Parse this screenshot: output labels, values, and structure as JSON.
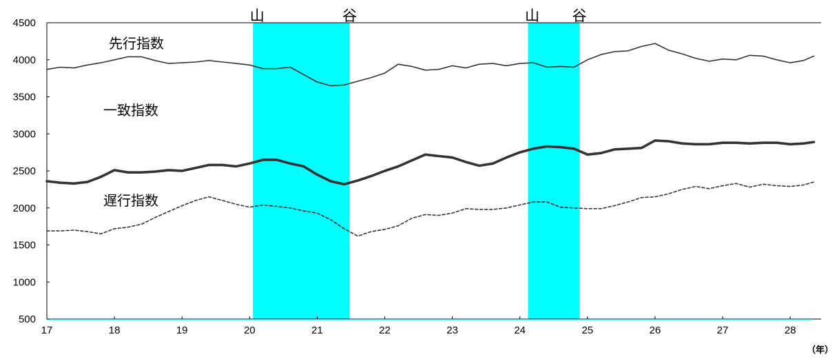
{
  "chart_data": {
    "type": "line",
    "x_unit_label": "（年）",
    "xlim": [
      17,
      28.35
    ],
    "ylim": [
      500,
      4500
    ],
    "y_ticks": [
      500,
      1000,
      1500,
      2000,
      2500,
      3000,
      3500,
      4000,
      4500
    ],
    "x_ticks": [
      17,
      18,
      19,
      20,
      21,
      22,
      23,
      24,
      25,
      26,
      27,
      28
    ],
    "grid": false,
    "colors": {
      "band": "#00ffff",
      "line": "#333333",
      "axis": "#000000"
    },
    "shaded_periods": [
      {
        "start": 20.05,
        "end": 21.48,
        "start_label": "山",
        "end_label": "谷"
      },
      {
        "start": 24.12,
        "end": 24.88,
        "start_label": "山",
        "end_label": "谷"
      }
    ],
    "series": [
      {
        "name": "先行指数",
        "style": "thin",
        "x": [
          17.0,
          17.2,
          17.4,
          17.6,
          17.8,
          18.0,
          18.2,
          18.4,
          18.6,
          18.8,
          19.0,
          19.2,
          19.4,
          19.6,
          19.8,
          20.0,
          20.2,
          20.4,
          20.6,
          20.8,
          21.0,
          21.2,
          21.4,
          21.6,
          21.8,
          22.0,
          22.2,
          22.4,
          22.6,
          22.8,
          23.0,
          23.2,
          23.4,
          23.6,
          23.8,
          24.0,
          24.2,
          24.4,
          24.6,
          24.8,
          25.0,
          25.2,
          25.4,
          25.6,
          25.8,
          26.0,
          26.2,
          26.4,
          26.6,
          26.8,
          27.0,
          27.2,
          27.4,
          27.6,
          27.8,
          28.0,
          28.2,
          28.35
        ],
        "y": [
          3870,
          3900,
          3890,
          3930,
          3960,
          4000,
          4040,
          4040,
          3990,
          3950,
          3960,
          3970,
          3990,
          3970,
          3950,
          3930,
          3880,
          3880,
          3900,
          3800,
          3700,
          3650,
          3660,
          3710,
          3760,
          3820,
          3940,
          3910,
          3860,
          3870,
          3920,
          3890,
          3940,
          3950,
          3920,
          3950,
          3960,
          3900,
          3910,
          3900,
          4000,
          4070,
          4110,
          4120,
          4180,
          4220,
          4130,
          4080,
          4020,
          3980,
          4010,
          4000,
          4060,
          4050,
          4000,
          3960,
          3990,
          4050
        ]
      },
      {
        "name": "一致指数",
        "style": "thick",
        "x": [
          17.0,
          17.2,
          17.4,
          17.6,
          17.8,
          18.0,
          18.2,
          18.4,
          18.6,
          18.8,
          19.0,
          19.2,
          19.4,
          19.6,
          19.8,
          20.0,
          20.2,
          20.4,
          20.6,
          20.8,
          21.0,
          21.2,
          21.4,
          21.6,
          21.8,
          22.0,
          22.2,
          22.4,
          22.6,
          22.8,
          23.0,
          23.2,
          23.4,
          23.6,
          23.8,
          24.0,
          24.2,
          24.4,
          24.6,
          24.8,
          25.0,
          25.2,
          25.4,
          25.6,
          25.8,
          26.0,
          26.2,
          26.4,
          26.6,
          26.8,
          27.0,
          27.2,
          27.4,
          27.6,
          27.8,
          28.0,
          28.2,
          28.35
        ],
        "y": [
          2360,
          2340,
          2330,
          2350,
          2420,
          2510,
          2480,
          2480,
          2490,
          2510,
          2500,
          2540,
          2580,
          2580,
          2560,
          2600,
          2650,
          2650,
          2600,
          2560,
          2450,
          2360,
          2320,
          2370,
          2430,
          2500,
          2560,
          2640,
          2720,
          2700,
          2680,
          2620,
          2570,
          2600,
          2680,
          2750,
          2800,
          2830,
          2820,
          2800,
          2720,
          2740,
          2790,
          2800,
          2810,
          2910,
          2900,
          2870,
          2860,
          2860,
          2880,
          2880,
          2870,
          2880,
          2880,
          2860,
          2870,
          2890
        ]
      },
      {
        "name": "遅行指数",
        "style": "dashed",
        "x": [
          17.0,
          17.2,
          17.4,
          17.6,
          17.8,
          18.0,
          18.2,
          18.4,
          18.6,
          18.8,
          19.0,
          19.2,
          19.4,
          19.6,
          19.8,
          20.0,
          20.2,
          20.4,
          20.6,
          20.8,
          21.0,
          21.2,
          21.4,
          21.6,
          21.8,
          22.0,
          22.2,
          22.4,
          22.6,
          22.8,
          23.0,
          23.2,
          23.4,
          23.6,
          23.8,
          24.0,
          24.2,
          24.4,
          24.6,
          24.8,
          25.0,
          25.2,
          25.4,
          25.6,
          25.8,
          26.0,
          26.2,
          26.4,
          26.6,
          26.8,
          27.0,
          27.2,
          27.4,
          27.6,
          27.8,
          28.0,
          28.2,
          28.35
        ],
        "y": [
          1690,
          1690,
          1700,
          1680,
          1650,
          1720,
          1740,
          1780,
          1870,
          1950,
          2030,
          2100,
          2150,
          2100,
          2050,
          2010,
          2040,
          2020,
          2000,
          1960,
          1930,
          1840,
          1720,
          1620,
          1680,
          1710,
          1760,
          1860,
          1910,
          1900,
          1930,
          1990,
          1980,
          1980,
          2000,
          2040,
          2080,
          2080,
          2010,
          2000,
          1990,
          1990,
          2030,
          2080,
          2140,
          2150,
          2190,
          2250,
          2290,
          2260,
          2300,
          2330,
          2280,
          2320,
          2300,
          2290,
          2310,
          2350
        ]
      }
    ]
  }
}
